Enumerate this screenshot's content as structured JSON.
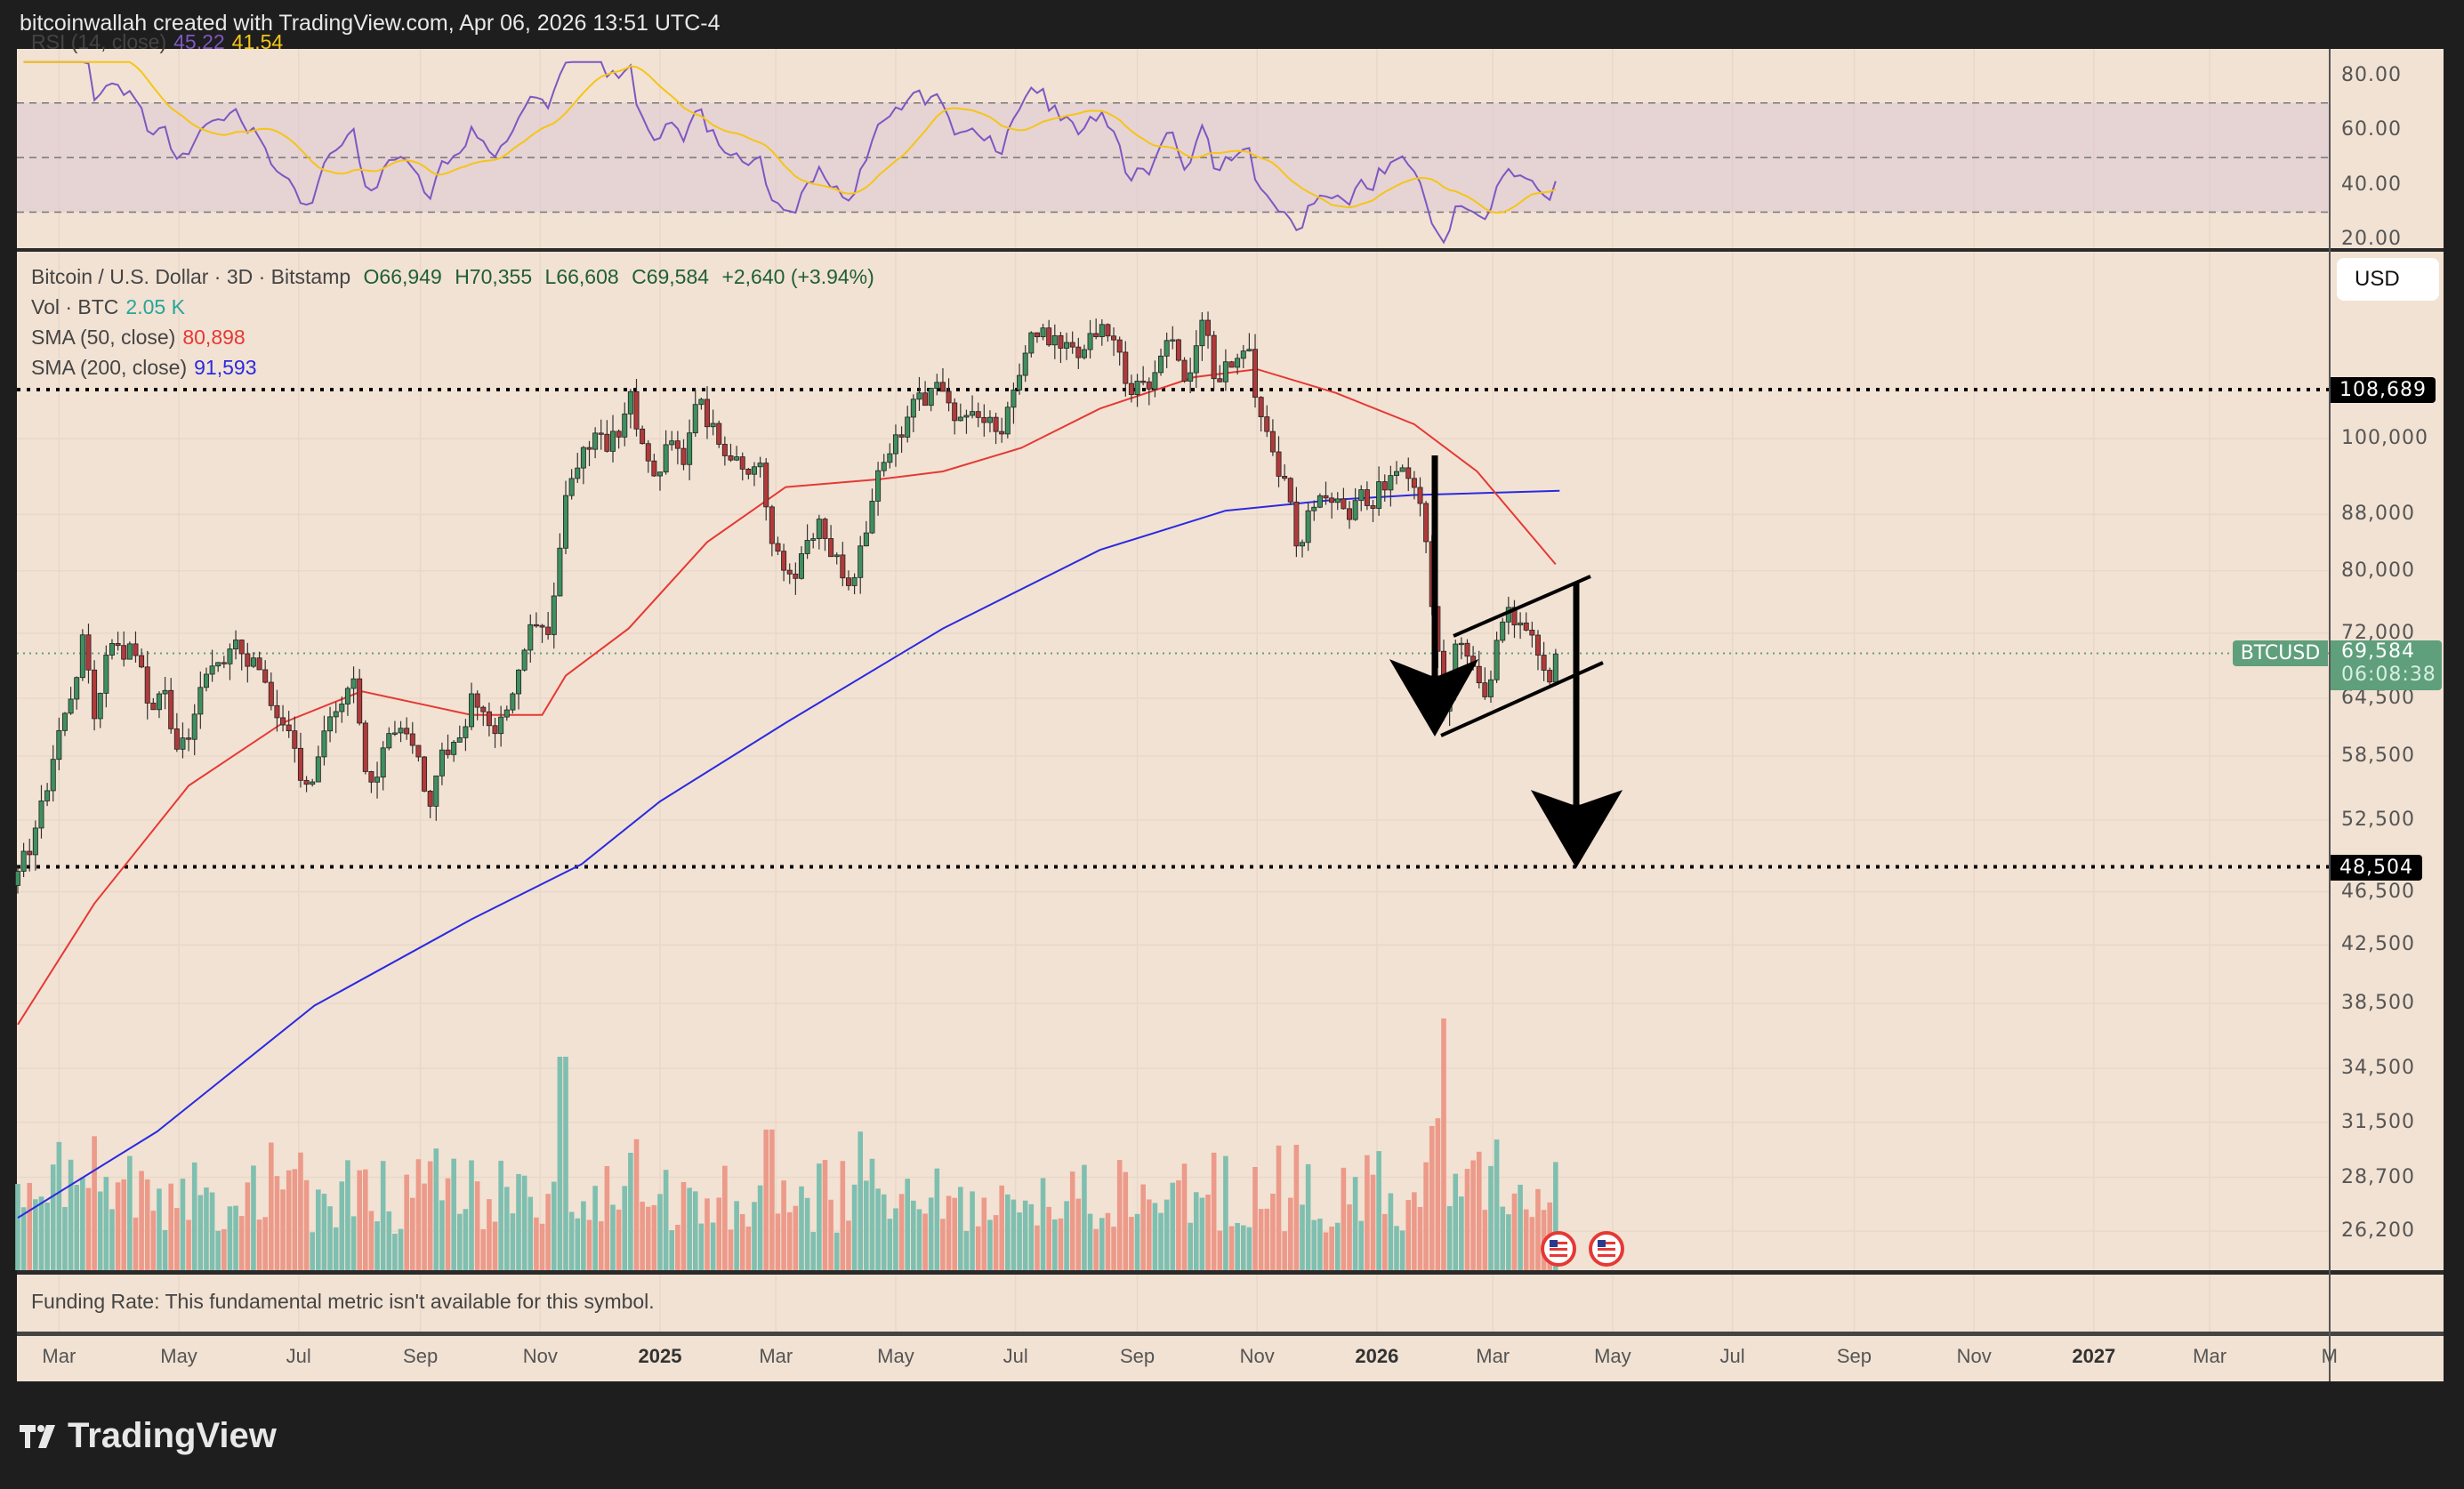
{
  "header": {
    "attribution": "bitcoinwallah created with TradingView.com, Apr 06, 2026 13:51 UTC-4"
  },
  "rsi": {
    "label": "RSI (14, close)",
    "value": "45.22",
    "ma_value": "41.54",
    "ticks": [
      "80.00",
      "60.00",
      "40.00",
      "20.00"
    ],
    "tick_values": [
      80,
      60,
      40,
      20
    ],
    "levels": [
      70,
      50,
      30
    ],
    "line_color": "#7e57c2",
    "ma_color": "#f5c518"
  },
  "legend": {
    "symbol": "Bitcoin / U.S. Dollar · 3D · Bitstamp",
    "open": "O66,949",
    "high": "H70,355",
    "low": "L66,608",
    "close": "C69,584",
    "change": "+2,640 (+3.94%)",
    "vol_label": "Vol · BTC",
    "vol_value": "2.05 K",
    "sma50_label": "SMA (50, close)",
    "sma50_value": "80,898",
    "sma200_label": "SMA (200, close)",
    "sma200_value": "91,593"
  },
  "price_axis": {
    "currency_button": "USD",
    "scale": "log",
    "ticks": [
      "100,000",
      "88,000",
      "80,000",
      "72,000",
      "64,500",
      "58,500",
      "52,500",
      "46,500",
      "42,500",
      "38,500",
      "34,500",
      "31,500",
      "28,700",
      "26,200"
    ],
    "tick_values": [
      100000,
      88000,
      80000,
      72000,
      64500,
      58500,
      52500,
      46500,
      42500,
      38500,
      34500,
      31500,
      28700,
      26200
    ],
    "last_price": {
      "symbol": "BTCUSD",
      "value": "69,584",
      "countdown": "06:08:38",
      "price": 69584
    }
  },
  "horizontal_lines": [
    {
      "label": "108,689",
      "price": 108689
    },
    {
      "label": "48,504",
      "price": 48504
    }
  ],
  "funding": {
    "text": "Funding Rate: This fundamental metric isn't available for this symbol."
  },
  "time_axis": [
    {
      "label": "Mar",
      "date": "2024-03-01"
    },
    {
      "label": "May",
      "date": "2024-05-01"
    },
    {
      "label": "Jul",
      "date": "2024-07-01"
    },
    {
      "label": "Sep",
      "date": "2024-09-01"
    },
    {
      "label": "Nov",
      "date": "2024-11-01"
    },
    {
      "label": "2025",
      "date": "2025-01-01",
      "year": true
    },
    {
      "label": "Mar",
      "date": "2025-03-01"
    },
    {
      "label": "May",
      "date": "2025-05-01"
    },
    {
      "label": "Jul",
      "date": "2025-07-01"
    },
    {
      "label": "Sep",
      "date": "2025-09-01"
    },
    {
      "label": "Nov",
      "date": "2025-11-01"
    },
    {
      "label": "2026",
      "date": "2026-01-01",
      "year": true
    },
    {
      "label": "Mar",
      "date": "2026-03-01"
    },
    {
      "label": "May",
      "date": "2026-05-01"
    },
    {
      "label": "Jul",
      "date": "2026-07-01"
    },
    {
      "label": "Sep",
      "date": "2026-09-01"
    },
    {
      "label": "Nov",
      "date": "2026-11-01"
    },
    {
      "label": "2027",
      "date": "2027-01-01",
      "year": true
    },
    {
      "label": "Mar",
      "date": "2027-03-01"
    },
    {
      "label": "M",
      "date": "2027-05-01"
    }
  ],
  "chart_data": {
    "type": "candlestick",
    "interval": "3D",
    "price_scale": "log",
    "up_color": "#3f8f5f",
    "down_color": "#b03a3a",
    "vol_up_color": "#7fbfb0",
    "vol_down_color": "#ec9a8a",
    "sma50_color": "#e53935",
    "sma200_color": "#2a2ae0",
    "last_bar": {
      "open": 66949,
      "high": 70355,
      "low": 66608,
      "close": 69584
    },
    "close_path": [
      [
        "2024-02-09",
        47000
      ],
      [
        "2024-02-20",
        52000
      ],
      [
        "2024-03-05",
        63000
      ],
      [
        "2024-03-14",
        72000
      ],
      [
        "2024-03-20",
        63000
      ],
      [
        "2024-03-27",
        70000
      ],
      [
        "2024-04-10",
        70000
      ],
      [
        "2024-04-17",
        62000
      ],
      [
        "2024-04-24",
        66000
      ],
      [
        "2024-05-01",
        58000
      ],
      [
        "2024-05-20",
        70000
      ],
      [
        "2024-06-07",
        70000
      ],
      [
        "2024-06-24",
        60000
      ],
      [
        "2024-07-05",
        55000
      ],
      [
        "2024-07-14",
        61000
      ],
      [
        "2024-07-28",
        68000
      ],
      [
        "2024-08-05",
        54000
      ],
      [
        "2024-08-24",
        64000
      ],
      [
        "2024-09-06",
        54000
      ],
      [
        "2024-09-27",
        65500
      ],
      [
        "2024-10-10",
        60000
      ],
      [
        "2024-10-29",
        72000
      ],
      [
        "2024-11-05",
        69000
      ],
      [
        "2024-11-13",
        90000
      ],
      [
        "2024-11-22",
        98000
      ],
      [
        "2024-12-05",
        99000
      ],
      [
        "2024-12-17",
        106000
      ],
      [
        "2024-12-30",
        93000
      ],
      [
        "2025-01-06",
        102000
      ],
      [
        "2025-01-13",
        94000
      ],
      [
        "2025-01-20",
        105000
      ],
      [
        "2025-02-03",
        98000
      ],
      [
        "2025-02-20",
        96000
      ],
      [
        "2025-02-28",
        82000
      ],
      [
        "2025-03-10",
        80000
      ],
      [
        "2025-03-24",
        87000
      ],
      [
        "2025-04-08",
        76000
      ],
      [
        "2025-04-22",
        93000
      ],
      [
        "2025-05-10",
        103000
      ],
      [
        "2025-05-22",
        110000
      ],
      [
        "2025-06-05",
        102000
      ],
      [
        "2025-06-22",
        100000
      ],
      [
        "2025-07-10",
        116000
      ],
      [
        "2025-07-14",
        121000
      ],
      [
        "2025-08-02",
        113000
      ],
      [
        "2025-08-13",
        122000
      ],
      [
        "2025-08-30",
        108000
      ],
      [
        "2025-09-18",
        116000
      ],
      [
        "2025-09-25",
        109000
      ],
      [
        "2025-10-06",
        124000
      ],
      [
        "2025-10-10",
        112000
      ],
      [
        "2025-10-27",
        115000
      ],
      [
        "2025-11-04",
        101000
      ],
      [
        "2025-11-14",
        94000
      ],
      [
        "2025-11-21",
        84000
      ],
      [
        "2025-12-03",
        92000
      ],
      [
        "2025-12-18",
        86000
      ],
      [
        "2026-01-05",
        93000
      ],
      [
        "2026-01-14",
        96000
      ],
      [
        "2026-01-25",
        88000
      ],
      [
        "2026-02-05",
        63000
      ],
      [
        "2026-02-10",
        70000
      ],
      [
        "2026-02-24",
        64000
      ],
      [
        "2026-03-04",
        72000
      ],
      [
        "2026-03-16",
        74000
      ],
      [
        "2026-03-28",
        66000
      ],
      [
        "2026-04-04",
        69584
      ]
    ],
    "sma50": [
      [
        "2024-02-09",
        37150
      ],
      [
        "2024-03-19",
        45590
      ],
      [
        "2024-05-06",
        55640
      ],
      [
        "2024-06-23",
        61880
      ],
      [
        "2024-08-02",
        65260
      ],
      [
        "2024-09-27",
        62700
      ],
      [
        "2024-11-02",
        62700
      ],
      [
        "2024-11-14",
        67010
      ],
      [
        "2024-12-16",
        72570
      ],
      [
        "2025-01-25",
        83990
      ],
      [
        "2025-03-06",
        92180
      ],
      [
        "2025-04-23",
        93400
      ],
      [
        "2025-05-25",
        94650
      ],
      [
        "2025-07-04",
        98500
      ],
      [
        "2025-08-13",
        105270
      ],
      [
        "2025-09-30",
        111000
      ],
      [
        "2025-11-01",
        112490
      ],
      [
        "2025-12-11",
        108090
      ],
      [
        "2026-01-20",
        102500
      ],
      [
        "2026-02-21",
        94650
      ],
      [
        "2026-04-02",
        80898
      ]
    ],
    "sma200": [
      [
        "2024-02-09",
        26800
      ],
      [
        "2024-04-20",
        31010
      ],
      [
        "2024-07-09",
        38360
      ],
      [
        "2024-09-27",
        44390
      ],
      [
        "2024-11-22",
        48720
      ],
      [
        "2025-01-01",
        54180
      ],
      [
        "2025-03-06",
        61880
      ],
      [
        "2025-05-25",
        72570
      ],
      [
        "2025-08-13",
        82890
      ],
      [
        "2025-10-16",
        88570
      ],
      [
        "2025-12-11",
        90220
      ],
      [
        "2026-01-20",
        90950
      ],
      [
        "2026-04-04",
        91593
      ]
    ],
    "events": [
      {
        "type": "us-economic-event",
        "date": "2026-04-05"
      },
      {
        "type": "us-economic-event",
        "date": "2026-04-30"
      }
    ]
  }
}
